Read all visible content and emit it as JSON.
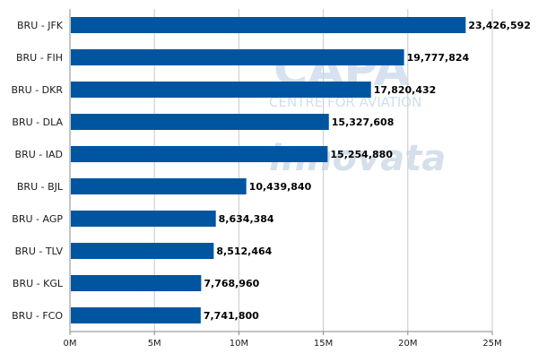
{
  "watermark": {
    "capa_text": "CAPA",
    "centre_text": "CENTRE FOR AVIATION",
    "innovata_text": "innovata"
  },
  "colors": {
    "bar": "#0055a0",
    "grid": "#c8c8c8",
    "axis": "#888888"
  },
  "chart_data": {
    "type": "bar",
    "orientation": "horizontal",
    "title": "",
    "xlabel": "",
    "ylabel": "",
    "xlim": [
      0,
      25000000
    ],
    "x_ticks": [
      0,
      5000000,
      10000000,
      15000000,
      20000000,
      25000000
    ],
    "x_tick_labels": [
      "0M",
      "5M",
      "10M",
      "15M",
      "20M",
      "25M"
    ],
    "grid": true,
    "legend": "none",
    "categories": [
      "BRU - JFK",
      "BRU - FIH",
      "BRU - DKR",
      "BRU - DLA",
      "BRU - IAD",
      "BRU - BJL",
      "BRU - AGP",
      "BRU - TLV",
      "BRU - KGL",
      "BRU - FCO"
    ],
    "values": [
      23426592,
      19777824,
      17820432,
      15327608,
      15254880,
      10439840,
      8634384,
      8512464,
      7768960,
      7741800
    ],
    "value_labels": [
      "23,426,592",
      "19,777,824",
      "17,820,432",
      "15,327,608",
      "15,254,880",
      "10,439,840",
      "8,634,384",
      "8,512,464",
      "7,768,960",
      "7,741,800"
    ]
  }
}
